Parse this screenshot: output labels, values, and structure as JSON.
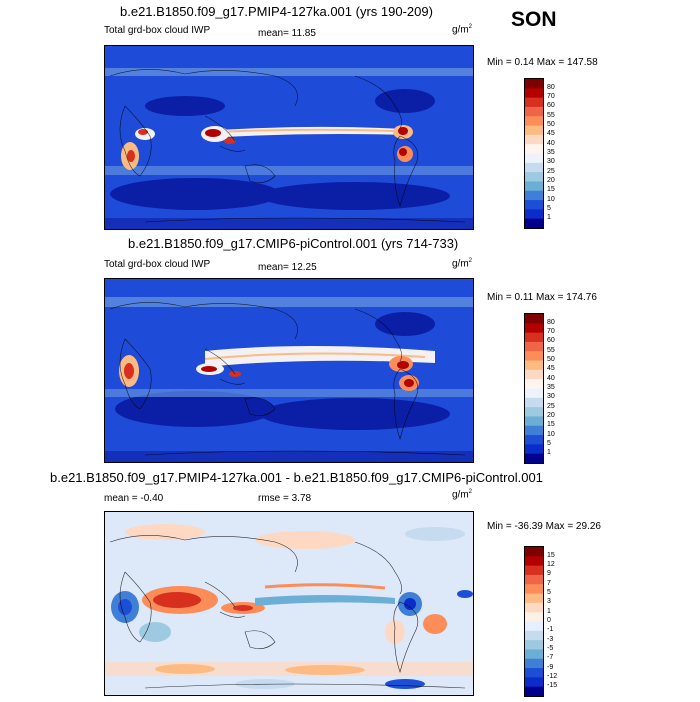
{
  "season": "SON",
  "units": "g/m2",
  "panels": [
    {
      "title": "b.e21.B1850.f09_g17.PMIP4-127ka.001 (yrs 190-209)",
      "left_label": "Total grd-box cloud IWP",
      "mean_text": "mean=  11.85",
      "minmax_text": "Min =   0.14 Max = 147.58",
      "levels": [
        "80",
        "70",
        "60",
        "55",
        "50",
        "45",
        "40",
        "35",
        "30",
        "25",
        "20",
        "15",
        "10",
        "5",
        "1"
      ],
      "colors": [
        "#7f0000",
        "#b30000",
        "#d7301f",
        "#ef6548",
        "#fc8d59",
        "#fdbb84",
        "#fdd9c4",
        "#fff5ee",
        "#eef3fb",
        "#c6dbef",
        "#9ecae1",
        "#6baed6",
        "#3f7fd6",
        "#1c4fd6",
        "#0a2cc8",
        "#00008c"
      ]
    },
    {
      "title": "b.e21.B1850.f09_g17.CMIP6-piControl.001 (yrs 714-733)",
      "left_label": "Total grd-box cloud IWP",
      "mean_text": "mean=  12.25",
      "minmax_text": "Min =   0.11 Max = 174.76",
      "levels": [
        "80",
        "70",
        "60",
        "55",
        "50",
        "45",
        "40",
        "35",
        "30",
        "25",
        "20",
        "15",
        "10",
        "5",
        "1"
      ],
      "colors": [
        "#7f0000",
        "#b30000",
        "#d7301f",
        "#ef6548",
        "#fc8d59",
        "#fdbb84",
        "#fdd9c4",
        "#fff5ee",
        "#eef3fb",
        "#c6dbef",
        "#9ecae1",
        "#6baed6",
        "#3f7fd6",
        "#1c4fd6",
        "#0a2cc8",
        "#00008c"
      ]
    },
    {
      "title": "b.e21.B1850.f09_g17.PMIP4-127ka.001 - b.e21.B1850.f09_g17.CMIP6-piControl.001",
      "left_label": "",
      "mean_text": "mean =  -0.40",
      "rmse_text": "rmse =   3.78",
      "minmax_text": "Min = -36.39 Max =  29.26",
      "levels": [
        "15",
        "12",
        "9",
        "7",
        "5",
        "3",
        "1",
        "0",
        "-1",
        "-3",
        "-5",
        "-7",
        "-9",
        "-12",
        "-15"
      ],
      "colors": [
        "#7f0000",
        "#b30000",
        "#d7301f",
        "#ef6548",
        "#fc8d59",
        "#fdbb84",
        "#fdd9c4",
        "#fff0e6",
        "#e6efff",
        "#c6dbef",
        "#9ecae1",
        "#6baed6",
        "#3f7fd6",
        "#1c4fd6",
        "#0a2cc8",
        "#00008c"
      ]
    }
  ],
  "colors": {
    "ocean_base": "#1e4bd8",
    "ocean_deep": "#0a1fa6",
    "itcz_light": "#f3f1f3",
    "hot": "#d7301f",
    "diff_base": "#dde8f8"
  }
}
